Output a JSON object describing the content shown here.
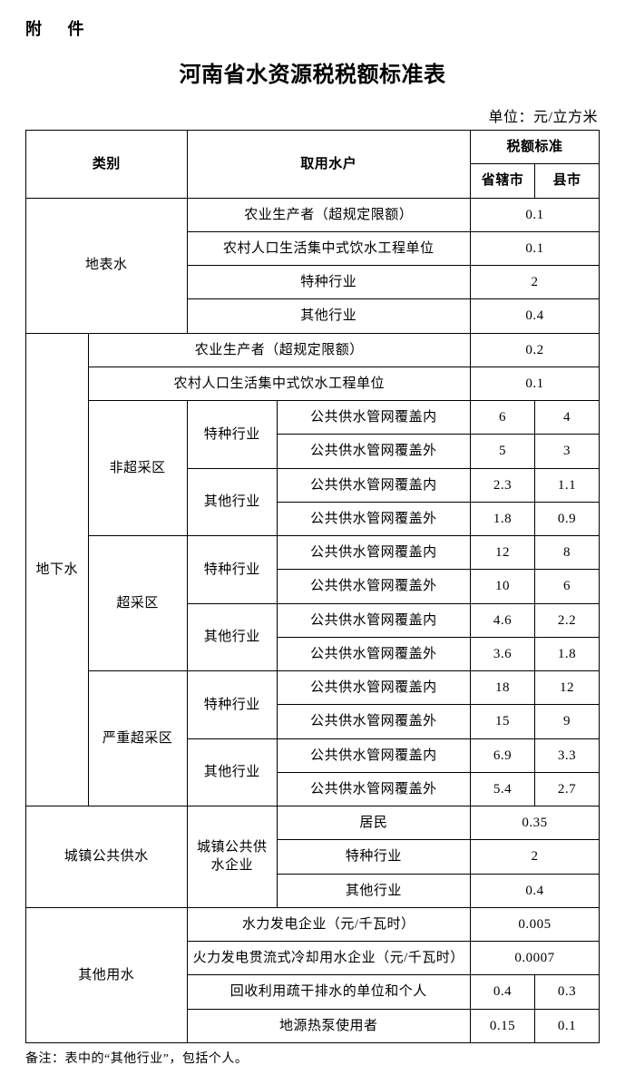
{
  "attachment_label": "附  件",
  "title": "河南省水资源税税额标准表",
  "unit_label": "单位：元/立方米",
  "footnote": "备注：表中的“其他行业”，包括个人。",
  "headers": {
    "category": "类别",
    "user": "取用水户",
    "rate": "税额标准",
    "city": "省辖市",
    "county": "县市"
  },
  "labels": {
    "surface": "地表水",
    "ground": "地下水",
    "non_over": "非超采区",
    "over": "超采区",
    "severe": "严重超采区",
    "special": "特种行业",
    "other_ind": "其他行业",
    "in_net": "公共供水管网覆盖内",
    "out_net": "公共供水管网覆盖外",
    "urban": "城镇公共供水",
    "urban_ent": "城镇公共供水企业",
    "residents": "居民",
    "other_water": "其他用水",
    "geo_pump": "地源热泵使用者"
  },
  "surface": {
    "agri": {
      "label": "农业生产者（超规定限额）",
      "v": "0.1"
    },
    "rural": {
      "label": "农村人口生活集中式饮水工程单位",
      "v": "0.1"
    },
    "special": {
      "v": "2"
    },
    "other": {
      "v": "0.4"
    }
  },
  "ground": {
    "agri": {
      "label": "农业生产者（超规定限额）",
      "v": "0.2"
    },
    "rural": {
      "label": "农村人口生活集中式饮水工程单位",
      "v": "0.1"
    },
    "non_over": {
      "special": {
        "in": {
          "c": "6",
          "x": "4"
        },
        "out": {
          "c": "5",
          "x": "3"
        }
      },
      "other": {
        "in": {
          "c": "2.3",
          "x": "1.1"
        },
        "out": {
          "c": "1.8",
          "x": "0.9"
        }
      }
    },
    "over": {
      "special": {
        "in": {
          "c": "12",
          "x": "8"
        },
        "out": {
          "c": "10",
          "x": "6"
        }
      },
      "other": {
        "in": {
          "c": "4.6",
          "x": "2.2"
        },
        "out": {
          "c": "3.6",
          "x": "1.8"
        }
      }
    },
    "severe": {
      "special": {
        "in": {
          "c": "18",
          "x": "12"
        },
        "out": {
          "c": "15",
          "x": "9"
        }
      },
      "other": {
        "in": {
          "c": "6.9",
          "x": "3.3"
        },
        "out": {
          "c": "5.4",
          "x": "2.7"
        }
      }
    }
  },
  "urban": {
    "residents": {
      "v": "0.35"
    },
    "special": {
      "v": "2"
    },
    "other": {
      "v": "0.4"
    }
  },
  "other_water": {
    "hydro": {
      "label": "水力发电企业（元/千瓦时）",
      "v": "0.005"
    },
    "thermal": {
      "label": "火力发电贯流式冷却用水企业（元/千瓦时）",
      "v": "0.0007"
    },
    "recycle": {
      "label": "回收利用疏干排水的单位和个人",
      "c": "0.4",
      "x": "0.3"
    },
    "geo": {
      "c": "0.15",
      "x": "0.1"
    }
  },
  "colors": {
    "border": "#000000",
    "bg": "#ffffff",
    "text": "#000000"
  }
}
